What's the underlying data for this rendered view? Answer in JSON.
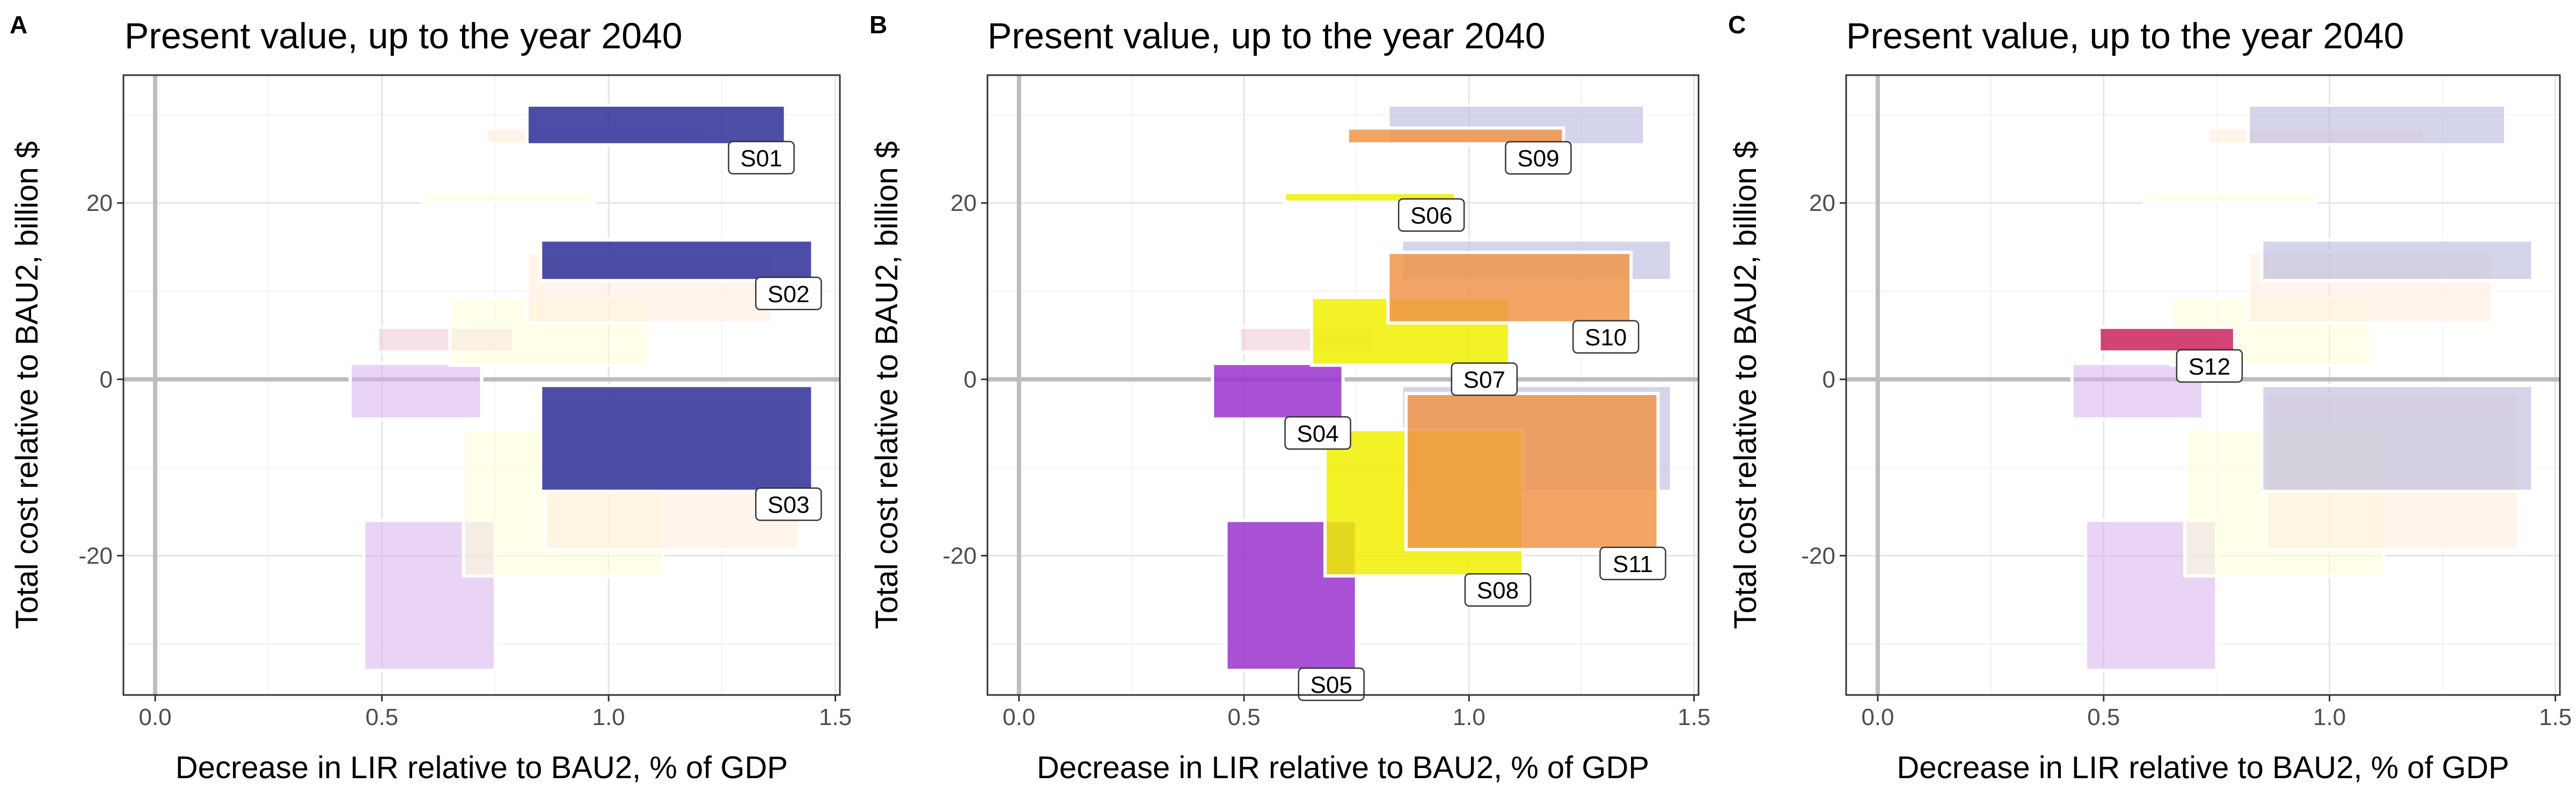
{
  "chart_data": [
    {
      "panel": "A",
      "type": "rect",
      "title": "Present value, up to the year 2040",
      "xlabel": "Decrease in LIR relative to BAU2, % of GDP",
      "ylabel": "Total cost relative to BAU2, billion $",
      "xlim": [
        -0.07,
        1.51
      ],
      "ylim": [
        -35.8,
        34.5
      ],
      "xticks": [
        0.0,
        0.5,
        1.0,
        1.5
      ],
      "xtick_labels": [
        "0.0",
        "0.5",
        "1.0",
        "1.5"
      ],
      "yticks": [
        -20,
        0,
        20
      ],
      "ytick_labels": [
        "-20",
        "0",
        "20"
      ],
      "grid": true,
      "reference_lines": {
        "x": 0,
        "y": 0
      },
      "rects": [
        {
          "id": "S05",
          "x0": 0.46,
          "x1": 0.75,
          "y0": -33,
          "y1": -16,
          "color": "#9932CC",
          "highlight": false
        },
        {
          "id": "S04",
          "x0": 0.43,
          "x1": 0.72,
          "y0": -4.5,
          "y1": 1.8,
          "color": "#9932CC",
          "highlight": false
        },
        {
          "id": "S12",
          "x0": 0.49,
          "x1": 0.79,
          "y0": 3.1,
          "y1": 5.9,
          "color": "#DB7093",
          "highlight": false
        },
        {
          "id": "S06",
          "x0": 0.59,
          "x1": 0.97,
          "y0": 20.1,
          "y1": 21.2,
          "color": "#FFFF99",
          "highlight": false
        },
        {
          "id": "S07",
          "x0": 0.65,
          "x1": 1.09,
          "y0": 1.6,
          "y1": 9.3,
          "color": "#FFFF99",
          "highlight": false
        },
        {
          "id": "S08",
          "x0": 0.68,
          "x1": 1.12,
          "y0": -22.3,
          "y1": -5.7,
          "color": "#FFFF99",
          "highlight": false
        },
        {
          "id": "S09",
          "x0": 0.73,
          "x1": 1.21,
          "y0": 26.7,
          "y1": 28.5,
          "color": "#FFCC99",
          "highlight": false
        },
        {
          "id": "S10",
          "x0": 0.82,
          "x1": 1.36,
          "y0": 6.4,
          "y1": 14.4,
          "color": "#FFCC99",
          "highlight": false
        },
        {
          "id": "S11",
          "x0": 0.86,
          "x1": 1.42,
          "y0": -19.3,
          "y1": -1.6,
          "color": "#FFCC99",
          "highlight": false
        },
        {
          "id": "S01",
          "x0": 0.82,
          "x1": 1.39,
          "y0": 26.6,
          "y1": 31.1,
          "color": "#2E2E99",
          "highlight": true
        },
        {
          "id": "S02",
          "x0": 0.85,
          "x1": 1.45,
          "y0": 11.2,
          "y1": 15.8,
          "color": "#2E2E99",
          "highlight": true
        },
        {
          "id": "S03",
          "x0": 0.85,
          "x1": 1.45,
          "y0": -12.7,
          "y1": -0.7,
          "color": "#2E2E99",
          "highlight": true
        }
      ],
      "labels": [
        "S01",
        "S02",
        "S03"
      ]
    },
    {
      "panel": "B",
      "type": "rect",
      "title": "Present value, up to the year 2040",
      "xlabel": "Decrease in LIR relative to BAU2, % of GDP",
      "ylabel": "Total cost relative to BAU2, billion $",
      "xlim": [
        -0.07,
        1.51
      ],
      "ylim": [
        -35.8,
        34.5
      ],
      "xticks": [
        0.0,
        0.5,
        1.0,
        1.5
      ],
      "xtick_labels": [
        "0.0",
        "0.5",
        "1.0",
        "1.5"
      ],
      "yticks": [
        -20,
        0,
        20
      ],
      "ytick_labels": [
        "-20",
        "0",
        "20"
      ],
      "grid": true,
      "reference_lines": {
        "x": 0,
        "y": 0
      },
      "rects": [
        {
          "id": "S01",
          "x0": 0.82,
          "x1": 1.39,
          "y0": 26.6,
          "y1": 31.1,
          "color": "#2E2E99",
          "highlight": false
        },
        {
          "id": "S02",
          "x0": 0.85,
          "x1": 1.45,
          "y0": 11.2,
          "y1": 15.8,
          "color": "#2E2E99",
          "highlight": false
        },
        {
          "id": "S03",
          "x0": 0.85,
          "x1": 1.45,
          "y0": -12.7,
          "y1": -0.7,
          "color": "#2E2E99",
          "highlight": false
        },
        {
          "id": "S12",
          "x0": 0.49,
          "x1": 0.79,
          "y0": 3.1,
          "y1": 5.9,
          "color": "#DB7093",
          "highlight": false
        },
        {
          "id": "S04",
          "x0": 0.43,
          "x1": 0.72,
          "y0": -4.5,
          "y1": 1.8,
          "color": "#9932CC",
          "highlight": true
        },
        {
          "id": "S05",
          "x0": 0.46,
          "x1": 0.75,
          "y0": -33,
          "y1": -16,
          "color": "#9932CC",
          "highlight": true
        },
        {
          "id": "S06",
          "x0": 0.59,
          "x1": 0.97,
          "y0": 20.1,
          "y1": 21.2,
          "color": "#F0F000",
          "highlight": true
        },
        {
          "id": "S07",
          "x0": 0.65,
          "x1": 1.09,
          "y0": 1.6,
          "y1": 9.3,
          "color": "#F0F000",
          "highlight": true
        },
        {
          "id": "S08",
          "x0": 0.68,
          "x1": 1.12,
          "y0": -22.3,
          "y1": -5.7,
          "color": "#F0F000",
          "highlight": true
        },
        {
          "id": "S09",
          "x0": 0.73,
          "x1": 1.21,
          "y0": 26.7,
          "y1": 28.5,
          "color": "#F0954A",
          "highlight": true
        },
        {
          "id": "S10",
          "x0": 0.82,
          "x1": 1.36,
          "y0": 6.4,
          "y1": 14.4,
          "color": "#F0954A",
          "highlight": true
        },
        {
          "id": "S11",
          "x0": 0.86,
          "x1": 1.42,
          "y0": -19.3,
          "y1": -1.6,
          "color": "#F0954A",
          "highlight": true
        }
      ],
      "labels": [
        "S04",
        "S05",
        "S06",
        "S07",
        "S08",
        "S09",
        "S10",
        "S11"
      ]
    },
    {
      "panel": "C",
      "type": "rect",
      "title": "Present value, up to the year 2040",
      "xlabel": "Decrease in LIR relative to BAU2, % of GDP",
      "ylabel": "Total cost relative to BAU2, billion $",
      "xlim": [
        -0.07,
        1.51
      ],
      "ylim": [
        -35.8,
        34.5
      ],
      "xticks": [
        0.0,
        0.5,
        1.0,
        1.5
      ],
      "xtick_labels": [
        "0.0",
        "0.5",
        "1.0",
        "1.5"
      ],
      "yticks": [
        -20,
        0,
        20
      ],
      "ytick_labels": [
        "-20",
        "0",
        "20"
      ],
      "grid": true,
      "reference_lines": {
        "x": 0,
        "y": 0
      },
      "rects": [
        {
          "id": "S05",
          "x0": 0.46,
          "x1": 0.75,
          "y0": -33,
          "y1": -16,
          "color": "#9932CC",
          "highlight": false
        },
        {
          "id": "S04",
          "x0": 0.43,
          "x1": 0.72,
          "y0": -4.5,
          "y1": 1.8,
          "color": "#9932CC",
          "highlight": false
        },
        {
          "id": "S06",
          "x0": 0.59,
          "x1": 0.97,
          "y0": 20.1,
          "y1": 21.2,
          "color": "#FFFF99",
          "highlight": false
        },
        {
          "id": "S07",
          "x0": 0.65,
          "x1": 1.09,
          "y0": 1.6,
          "y1": 9.3,
          "color": "#FFFF99",
          "highlight": false
        },
        {
          "id": "S08",
          "x0": 0.68,
          "x1": 1.12,
          "y0": -22.3,
          "y1": -5.7,
          "color": "#FFFF99",
          "highlight": false
        },
        {
          "id": "S09",
          "x0": 0.73,
          "x1": 1.21,
          "y0": 26.7,
          "y1": 28.5,
          "color": "#FFCC99",
          "highlight": false
        },
        {
          "id": "S10",
          "x0": 0.82,
          "x1": 1.36,
          "y0": 6.4,
          "y1": 14.4,
          "color": "#FFCC99",
          "highlight": false
        },
        {
          "id": "S11",
          "x0": 0.86,
          "x1": 1.42,
          "y0": -19.3,
          "y1": -1.6,
          "color": "#FFCC99",
          "highlight": false
        },
        {
          "id": "S01",
          "x0": 0.82,
          "x1": 1.39,
          "y0": 26.6,
          "y1": 31.1,
          "color": "#2E2E99",
          "highlight": false
        },
        {
          "id": "S02",
          "x0": 0.85,
          "x1": 1.45,
          "y0": 11.2,
          "y1": 15.8,
          "color": "#2E2E99",
          "highlight": false
        },
        {
          "id": "S03",
          "x0": 0.85,
          "x1": 1.45,
          "y0": -12.7,
          "y1": -0.7,
          "color": "#2E2E99",
          "highlight": false
        },
        {
          "id": "S12",
          "x0": 0.49,
          "x1": 0.79,
          "y0": 3.1,
          "y1": 5.9,
          "color": "#C8245E",
          "highlight": true
        }
      ],
      "labels": [
        "S12"
      ]
    }
  ]
}
